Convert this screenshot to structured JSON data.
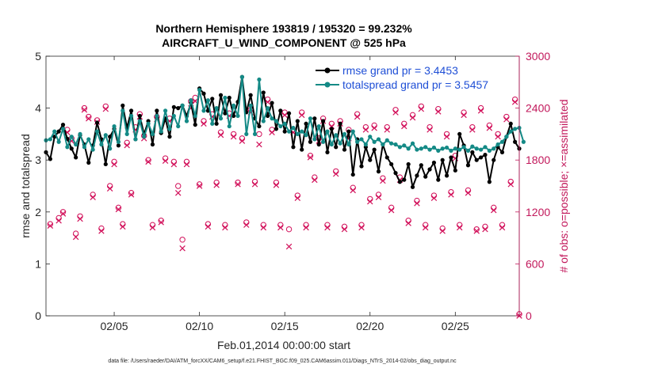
{
  "chart_data": {
    "type": "line",
    "title_line1": "Northern Hemisphere 193819 / 195320 = 99.232%",
    "title_line2": "AIRCRAFT_U_WIND_COMPONENT @ 525 hPa",
    "xlabel": "Feb.01,2014 00:00:00 start",
    "ylabel_left": "rmse and totalspread",
    "ylabel_right": "# of obs: o=possible; ×=assimilated",
    "footnote": "data file: /Users/raeder/DAI/ATM_forcXX/CAM6_setup/f.e21.FHIST_BGC.f09_025.CAM6assim.011/Diags_NTrS_2014-02/obs_diag_output.nc",
    "xlim": [
      1.0,
      28.75
    ],
    "ylim_left": [
      0,
      5
    ],
    "ylim_right": [
      0,
      3000
    ],
    "x_ticks": [
      5,
      10,
      15,
      20,
      25
    ],
    "x_tick_labels": [
      "02/05",
      "02/10",
      "02/15",
      "02/20",
      "02/25"
    ],
    "y_left_ticks": [
      0,
      1,
      2,
      3,
      4,
      5
    ],
    "y_left_tick_labels": [
      "0",
      "1",
      "2",
      "3",
      "4",
      "5"
    ],
    "y_right_ticks": [
      0,
      600,
      1200,
      1800,
      2400,
      3000
    ],
    "y_right_tick_labels": [
      "0",
      "600",
      "1200",
      "1800",
      "2400",
      "3000"
    ],
    "x_start": 1.0,
    "x_step": 0.25,
    "series": [
      {
        "name": "rmse grand pr = 3.4453",
        "color": "#000000",
        "axis": "left",
        "values": [
          3.15,
          3.02,
          3.45,
          3.55,
          3.68,
          3.41,
          3.22,
          3.05,
          3.48,
          3.3,
          2.95,
          3.28,
          3.72,
          3.4,
          2.92,
          3.45,
          3.6,
          3.28,
          4.05,
          3.62,
          3.95,
          3.4,
          3.85,
          3.5,
          3.75,
          3.3,
          3.95,
          3.52,
          3.8,
          3.45,
          4.02,
          4.0,
          4.05,
          3.85,
          4.1,
          3.68,
          4.38,
          4.28,
          3.95,
          4.18,
          3.7,
          4.25,
          3.9,
          4.2,
          3.85,
          4.12,
          4.6,
          3.92,
          4.25,
          3.8,
          3.65,
          4.3,
          3.85,
          4.1,
          3.6,
          3.95,
          3.55,
          3.9,
          3.25,
          3.75,
          3.2,
          3.7,
          3.35,
          3.8,
          3.3,
          3.75,
          3.15,
          3.6,
          3.25,
          3.7,
          3.2,
          3.55,
          2.72,
          3.4,
          2.88,
          3.25,
          3.0,
          3.2,
          2.78,
          3.3,
          3.05,
          2.92,
          2.75,
          2.58,
          2.62,
          2.92,
          2.48,
          2.7,
          2.9,
          2.68,
          2.82,
          2.95,
          2.62,
          3.0,
          2.7,
          3.05,
          2.8,
          3.5,
          3.28,
          2.9,
          3.15,
          3.0,
          3.05,
          3.1,
          2.58,
          3.0,
          3.25,
          3.15,
          3.45,
          3.7,
          3.35,
          3.22
        ]
      },
      {
        "name": "totalspread grand pr = 3.5457",
        "color": "#148a86",
        "axis": "left",
        "values": [
          3.38,
          3.4,
          3.55,
          3.35,
          3.6,
          3.25,
          3.45,
          3.3,
          3.5,
          3.25,
          3.4,
          3.2,
          3.55,
          3.3,
          3.48,
          3.22,
          3.65,
          3.35,
          3.95,
          3.5,
          3.85,
          3.4,
          3.75,
          3.45,
          3.7,
          3.5,
          3.85,
          3.55,
          3.95,
          3.6,
          3.85,
          3.65,
          4.05,
          3.75,
          4.15,
          3.85,
          4.35,
          3.95,
          4.15,
          3.7,
          4.0,
          3.8,
          4.2,
          3.65,
          4.05,
          3.85,
          4.6,
          3.5,
          4.05,
          3.5,
          4.55,
          3.75,
          4.0,
          3.8,
          3.75,
          3.65,
          3.7,
          3.55,
          3.62,
          3.5,
          3.55,
          3.48,
          3.8,
          3.4,
          3.65,
          3.35,
          3.55,
          3.3,
          3.48,
          3.32,
          3.5,
          3.3,
          3.55,
          3.35,
          3.4,
          3.3,
          3.45,
          3.35,
          3.4,
          3.3,
          3.38,
          3.32,
          3.3,
          3.25,
          3.28,
          3.22,
          3.32,
          3.2,
          3.22,
          3.25,
          3.2,
          3.24,
          3.18,
          3.22,
          3.24,
          3.18,
          3.22,
          3.2,
          3.25,
          3.18,
          3.26,
          3.22,
          3.2,
          3.25,
          3.18,
          3.22,
          3.3,
          3.35,
          3.45,
          3.55,
          3.6,
          3.62,
          3.35
        ]
      }
    ],
    "obs_possible": {
      "name": "possible",
      "marker": "o",
      "color": "#d2105a",
      "axis": "right",
      "points": [
        [
          1.25,
          1060
        ],
        [
          1.75,
          1130
        ],
        [
          2.0,
          1200
        ],
        [
          2.25,
          2150
        ],
        [
          2.5,
          2050
        ],
        [
          2.75,
          950
        ],
        [
          3.0,
          1150
        ],
        [
          3.25,
          2400
        ],
        [
          3.5,
          2300
        ],
        [
          3.75,
          1400
        ],
        [
          4.0,
          2260
        ],
        [
          4.25,
          1010
        ],
        [
          4.5,
          2420
        ],
        [
          4.75,
          1500
        ],
        [
          5.0,
          1780
        ],
        [
          5.25,
          1250
        ],
        [
          5.5,
          1060
        ],
        [
          5.75,
          2000
        ],
        [
          6.0,
          1420
        ],
        [
          6.25,
          2180
        ],
        [
          6.5,
          2330
        ],
        [
          6.75,
          2080
        ],
        [
          7.0,
          1800
        ],
        [
          7.25,
          1050
        ],
        [
          7.5,
          2300
        ],
        [
          7.75,
          1100
        ],
        [
          8.0,
          1820
        ],
        [
          8.25,
          2280
        ],
        [
          8.5,
          1780
        ],
        [
          8.75,
          1500
        ],
        [
          9.0,
          880
        ],
        [
          9.25,
          1780
        ],
        [
          9.5,
          2480
        ],
        [
          9.75,
          2520
        ],
        [
          10.0,
          1520
        ],
        [
          10.25,
          2250
        ],
        [
          10.5,
          1060
        ],
        [
          10.75,
          2330
        ],
        [
          11.0,
          1540
        ],
        [
          11.25,
          2120
        ],
        [
          11.5,
          1050
        ],
        [
          11.75,
          2340
        ],
        [
          12.0,
          2100
        ],
        [
          12.25,
          1540
        ],
        [
          12.5,
          2050
        ],
        [
          12.75,
          1080
        ],
        [
          13.0,
          2380
        ],
        [
          13.25,
          1550
        ],
        [
          13.5,
          2100
        ],
        [
          13.75,
          1050
        ],
        [
          14.0,
          2500
        ],
        [
          14.25,
          2150
        ],
        [
          14.5,
          1540
        ],
        [
          14.75,
          1050
        ],
        [
          15.0,
          2350
        ],
        [
          15.25,
          1000
        ],
        [
          15.5,
          2150
        ],
        [
          15.75,
          1390
        ],
        [
          16.0,
          2350
        ],
        [
          16.25,
          1050
        ],
        [
          16.5,
          1850
        ],
        [
          16.75,
          1600
        ],
        [
          17.0,
          2050
        ],
        [
          17.25,
          2280
        ],
        [
          17.5,
          1050
        ],
        [
          17.75,
          2220
        ],
        [
          18.0,
          1670
        ],
        [
          18.25,
          2250
        ],
        [
          18.5,
          1030
        ],
        [
          18.75,
          2150
        ],
        [
          19.0,
          1480
        ],
        [
          19.25,
          2330
        ],
        [
          19.5,
          1050
        ],
        [
          19.75,
          2180
        ],
        [
          20.0,
          1350
        ],
        [
          20.25,
          2200
        ],
        [
          20.5,
          1400
        ],
        [
          20.75,
          1590
        ],
        [
          21.0,
          2180
        ],
        [
          21.25,
          1250
        ],
        [
          21.5,
          2380
        ],
        [
          21.75,
          1600
        ],
        [
          22.0,
          2220
        ],
        [
          22.25,
          1100
        ],
        [
          22.5,
          2320
        ],
        [
          22.75,
          1330
        ],
        [
          23.0,
          2420
        ],
        [
          23.25,
          1050
        ],
        [
          23.5,
          2180
        ],
        [
          23.75,
          1390
        ],
        [
          24.0,
          2390
        ],
        [
          24.25,
          1010
        ],
        [
          24.5,
          2100
        ],
        [
          24.75,
          1430
        ],
        [
          25.0,
          1850
        ],
        [
          25.25,
          1050
        ],
        [
          25.5,
          2350
        ],
        [
          25.75,
          1450
        ],
        [
          26.0,
          2180
        ],
        [
          26.25,
          1000
        ],
        [
          26.5,
          2400
        ],
        [
          26.75,
          1030
        ],
        [
          27.0,
          2200
        ],
        [
          27.25,
          1250
        ],
        [
          27.5,
          2100
        ],
        [
          27.75,
          1050
        ],
        [
          28.0,
          2300
        ],
        [
          28.25,
          1550
        ],
        [
          28.5,
          2500
        ],
        [
          28.75,
          20
        ]
      ]
    },
    "obs_assimilated": {
      "name": "assimilated",
      "marker": "×",
      "color": "#d2105a",
      "axis": "right",
      "points": [
        [
          1.25,
          1040
        ],
        [
          1.75,
          1100
        ],
        [
          2.0,
          1180
        ],
        [
          2.25,
          2120
        ],
        [
          2.5,
          2020
        ],
        [
          2.75,
          910
        ],
        [
          3.0,
          1120
        ],
        [
          3.25,
          2380
        ],
        [
          3.5,
          2280
        ],
        [
          3.75,
          1370
        ],
        [
          4.0,
          2240
        ],
        [
          4.25,
          980
        ],
        [
          4.5,
          2390
        ],
        [
          4.75,
          1470
        ],
        [
          5.0,
          1750
        ],
        [
          5.25,
          1230
        ],
        [
          5.5,
          1030
        ],
        [
          5.75,
          1970
        ],
        [
          6.0,
          1400
        ],
        [
          6.25,
          2150
        ],
        [
          6.5,
          2300
        ],
        [
          6.75,
          2050
        ],
        [
          7.0,
          1780
        ],
        [
          7.25,
          1020
        ],
        [
          7.5,
          2270
        ],
        [
          7.75,
          1080
        ],
        [
          8.0,
          1790
        ],
        [
          8.25,
          2250
        ],
        [
          8.5,
          1750
        ],
        [
          8.75,
          1420
        ],
        [
          9.0,
          780
        ],
        [
          9.25,
          1750
        ],
        [
          9.5,
          2400
        ],
        [
          9.75,
          2480
        ],
        [
          10.0,
          1500
        ],
        [
          10.25,
          2220
        ],
        [
          10.5,
          1030
        ],
        [
          10.75,
          2300
        ],
        [
          11.0,
          1510
        ],
        [
          11.25,
          2090
        ],
        [
          11.5,
          1020
        ],
        [
          11.75,
          2310
        ],
        [
          12.0,
          2070
        ],
        [
          12.25,
          1520
        ],
        [
          12.5,
          2020
        ],
        [
          12.75,
          1050
        ],
        [
          13.0,
          2350
        ],
        [
          13.25,
          1520
        ],
        [
          13.5,
          1980
        ],
        [
          13.75,
          1020
        ],
        [
          14.0,
          2470
        ],
        [
          14.25,
          2120
        ],
        [
          14.5,
          1510
        ],
        [
          14.75,
          1020
        ],
        [
          15.0,
          2320
        ],
        [
          15.25,
          800
        ],
        [
          15.5,
          2120
        ],
        [
          15.75,
          1360
        ],
        [
          16.0,
          2320
        ],
        [
          16.25,
          1020
        ],
        [
          16.5,
          1830
        ],
        [
          16.75,
          1570
        ],
        [
          17.0,
          2020
        ],
        [
          17.25,
          2250
        ],
        [
          17.5,
          1020
        ],
        [
          17.75,
          2190
        ],
        [
          18.0,
          1640
        ],
        [
          18.25,
          2220
        ],
        [
          18.5,
          1000
        ],
        [
          18.75,
          2050
        ],
        [
          19.0,
          1450
        ],
        [
          19.25,
          2300
        ],
        [
          19.5,
          1020
        ],
        [
          19.75,
          2150
        ],
        [
          20.0,
          1320
        ],
        [
          20.25,
          2170
        ],
        [
          20.5,
          1370
        ],
        [
          20.75,
          1560
        ],
        [
          21.0,
          2150
        ],
        [
          21.25,
          1220
        ],
        [
          21.5,
          2350
        ],
        [
          21.75,
          1570
        ],
        [
          22.0,
          2190
        ],
        [
          22.25,
          1070
        ],
        [
          22.5,
          2290
        ],
        [
          22.75,
          1300
        ],
        [
          23.0,
          2390
        ],
        [
          23.25,
          1020
        ],
        [
          23.5,
          2150
        ],
        [
          23.75,
          1360
        ],
        [
          24.0,
          2360
        ],
        [
          24.25,
          980
        ],
        [
          24.5,
          2070
        ],
        [
          24.75,
          1400
        ],
        [
          25.0,
          1820
        ],
        [
          25.25,
          1020
        ],
        [
          25.5,
          2320
        ],
        [
          25.75,
          1420
        ],
        [
          26.0,
          2150
        ],
        [
          26.25,
          980
        ],
        [
          26.5,
          2370
        ],
        [
          26.75,
          1000
        ],
        [
          27.0,
          2170
        ],
        [
          27.25,
          1220
        ],
        [
          27.5,
          2070
        ],
        [
          27.75,
          1020
        ],
        [
          28.0,
          2270
        ],
        [
          28.25,
          1520
        ],
        [
          28.5,
          2470
        ],
        [
          28.75,
          0
        ]
      ]
    },
    "colors": {
      "right_axis": "#c2185b",
      "legend_text": "#1f4fd6",
      "axes": "#262626"
    }
  }
}
